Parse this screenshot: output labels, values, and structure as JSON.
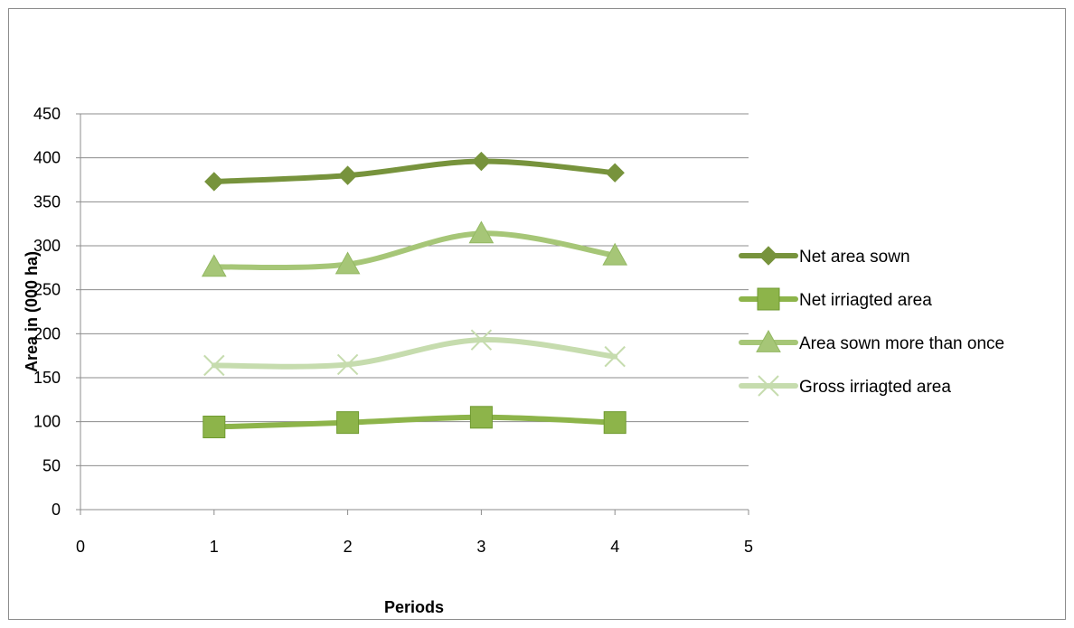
{
  "chart_data": {
    "type": "line",
    "title": "",
    "xlabel": "Periods",
    "ylabel": "Area in (000 ha)",
    "x": [
      1,
      2,
      3,
      4
    ],
    "xlim": [
      0,
      5
    ],
    "ylim": [
      0,
      450
    ],
    "x_ticks": [
      0,
      1,
      2,
      3,
      4,
      5
    ],
    "y_ticks": [
      0,
      50,
      100,
      150,
      200,
      250,
      300,
      350,
      400,
      450
    ],
    "grid": "horizontal",
    "legend_position": "right",
    "smooth": true,
    "series": [
      {
        "name": "Net area sown",
        "values": [
          373,
          380,
          396,
          383
        ],
        "color": "#77933c",
        "marker": "diamond"
      },
      {
        "name": "Net irriagted area",
        "values": [
          94,
          99,
          105,
          99
        ],
        "color": "#8db44a",
        "marker": "square"
      },
      {
        "name": "Area sown more than once",
        "values": [
          276,
          279,
          314,
          289
        ],
        "color": "#a6c677",
        "marker": "triangle"
      },
      {
        "name": "Gross irriagted area",
        "values": [
          164,
          165,
          193,
          174
        ],
        "color": "#c6dcae",
        "marker": "x"
      }
    ],
    "legend_order": [
      0,
      1,
      2,
      3
    ],
    "legend_text": [
      " Net area sown",
      "Net irriagted area",
      "Area sown more than once",
      "Gross irriagted area"
    ]
  }
}
